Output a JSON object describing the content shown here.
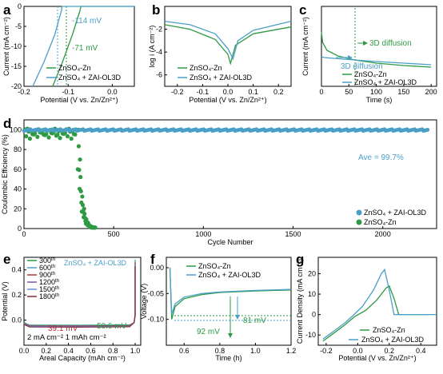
{
  "colors": {
    "green": "#2e9a44",
    "blue": "#4a9fc8",
    "red": "#b0323c",
    "purple": "#7a5aa0",
    "dark": "#222222"
  },
  "panels": {
    "a": {
      "letter": "a",
      "chart_data": {
        "type": "line",
        "xlabel": "Potential (V vs. Zn/Zn²⁺)",
        "ylabel": "Current (mA cm⁻²)",
        "xlim": [
          -0.2,
          0.05
        ],
        "ylim": [
          -20,
          0
        ],
        "xticks": [
          "-0.2",
          "-0.1",
          "0.0"
        ],
        "yticks": [
          "0",
          "-5",
          "-10",
          "-15",
          "-20"
        ],
        "annotations": [
          "-114 mV",
          "-71 mV"
        ],
        "series": [
          {
            "name": "ZnSO₄-Zn",
            "x": [
              -0.135,
              -0.113,
              -0.09,
              -0.073,
              -0.071,
              0.05
            ],
            "y": [
              -20,
              -14,
              -7,
              -1,
              0,
              0
            ]
          },
          {
            "name": "ZnSO₄ + ZAI-OL3D",
            "x": [
              -0.18,
              -0.155,
              -0.13,
              -0.115,
              -0.114,
              0.05
            ],
            "y": [
              -20,
              -14,
              -7,
              -1,
              0,
              0
            ]
          }
        ]
      }
    },
    "b": {
      "letter": "b",
      "chart_data": {
        "type": "line",
        "xlabel": "Potential (V vs. Zn/Zn²⁺)",
        "ylabel": "log i (A cm⁻²)",
        "xlim": [
          -0.25,
          0.25
        ],
        "ylim": [
          -7,
          0
        ],
        "xticks": [
          "-0.2",
          "-0.1",
          "0.0",
          "0.1",
          "0.2"
        ],
        "yticks": [
          "-2",
          "-4",
          "-6"
        ],
        "series": [
          {
            "name": "ZnSO₄-Zn",
            "x": [
              -0.25,
              -0.15,
              -0.05,
              0.0,
              0.01,
              0.03,
              0.1,
              0.25
            ],
            "y": [
              -1.6,
              -2.0,
              -2.9,
              -4.2,
              -5.0,
              -3.4,
              -2.4,
              -1.8
            ]
          },
          {
            "name": "ZnSO₄ + ZAI-OL3D",
            "x": [
              -0.25,
              -0.15,
              -0.05,
              0.0,
              0.02,
              0.04,
              0.1,
              0.25
            ],
            "y": [
              -1.3,
              -1.6,
              -2.4,
              -3.7,
              -4.6,
              -3.0,
              -2.1,
              -1.3
            ]
          }
        ]
      }
    },
    "c": {
      "letter": "c",
      "chart_data": {
        "type": "line",
        "xlabel": "Time (s)",
        "ylabel": "Current (mA cm⁻²)",
        "xlim": [
          0,
          210
        ],
        "ylim": [
          -10,
          0
        ],
        "xticks": [
          "0",
          "50",
          "100",
          "150",
          "200"
        ],
        "annotations": [
          "3D diffusion",
          "3D diffusion"
        ],
        "series": [
          {
            "name": "ZnSO₄-Zn",
            "x": [
              0,
              2,
              10,
              30,
              60,
              100,
              150,
              200
            ],
            "y": [
              -3.2,
              -4.5,
              -5.5,
              -6.2,
              -6.7,
              -7.1,
              -7.4,
              -7.6
            ]
          },
          {
            "name": "ZnSO₄ + ZAI-OL3D",
            "x": [
              0,
              5,
              40,
              100,
              150,
              200
            ],
            "y": [
              -6.3,
              -6.4,
              -6.6,
              -6.9,
              -7.1,
              -7.3
            ]
          }
        ]
      }
    },
    "d": {
      "letter": "d",
      "chart_data": {
        "type": "scatter",
        "xlabel": "Cycle Number",
        "ylabel": "Coulombic Efficiency (%)",
        "xlim": [
          0,
          2300
        ],
        "ylim": [
          0,
          110
        ],
        "xticks": [
          "0",
          "500",
          "1000",
          "1500",
          "2000"
        ],
        "yticks": [
          "0",
          "20",
          "40",
          "60",
          "80",
          "100"
        ],
        "annotations": [
          "Ave = 99.7%"
        ],
        "legend": "bottom-right",
        "series": [
          {
            "name": "ZnSO₄ + ZAI-OL3D",
            "x": [
              0,
              2250
            ],
            "y": [
              99.7,
              99.7
            ]
          },
          {
            "name": "ZnSO₄-Zn",
            "x": [
              10,
              250,
              300,
              320,
              340,
              360,
              380,
              400
            ],
            "y": [
              97,
              99,
              60,
              40,
              20,
              10,
              4,
              2
            ]
          }
        ]
      }
    },
    "e": {
      "letter": "e",
      "chart_data": {
        "type": "line",
        "xlabel": "Areal Capacity (mAh cm⁻²)",
        "ylabel": "Potential (V)",
        "xlim": [
          0,
          1.05
        ],
        "ylim": [
          -0.2,
          0.5
        ],
        "xticks": [
          "0.0",
          "0.2",
          "0.4",
          "0.6",
          "0.8",
          "1.0"
        ],
        "yticks": [
          "0.0",
          "0.2",
          "0.4"
        ],
        "title_inline": "ZnSO₄ + ZAI-OL3D",
        "conditions": "2 mA cm⁻² 1 mAh cm⁻²",
        "annotations": [
          "39.1 mV",
          "50.6 mV"
        ],
        "series": [
          {
            "name": "300",
            "sup": "th"
          },
          {
            "name": "600",
            "sup": "th"
          },
          {
            "name": "900",
            "sup": "th"
          },
          {
            "name": "1200",
            "sup": "th"
          },
          {
            "name": "1500",
            "sup": "th"
          },
          {
            "name": "1800",
            "sup": "th"
          }
        ]
      }
    },
    "f": {
      "letter": "f",
      "chart_data": {
        "type": "line",
        "xlabel": "Time (h)",
        "ylabel": "Voltage (V)",
        "xlim": [
          0.5,
          1.2
        ],
        "ylim": [
          -0.15,
          0.02
        ],
        "xticks": [
          "0.6",
          "0.8",
          "1.0",
          "1.2"
        ],
        "yticks": [
          "0.00",
          "-0.05",
          "-0.10"
        ],
        "annotations": [
          "92 mV",
          "81 mV"
        ],
        "series": [
          {
            "name": "ZnSO₄-Zn",
            "x": [
              0.52,
              0.53,
              0.55,
              0.6,
              0.7,
              0.8,
              1.0,
              1.2
            ],
            "y": [
              0.0,
              -0.1,
              -0.075,
              -0.06,
              -0.052,
              -0.048,
              -0.045,
              -0.043
            ]
          },
          {
            "name": "ZnSO₄ + ZAI-OL3D",
            "x": [
              0.52,
              0.53,
              0.55,
              0.6,
              0.7,
              0.8,
              1.0,
              1.2
            ],
            "y": [
              0.0,
              -0.09,
              -0.07,
              -0.057,
              -0.05,
              -0.047,
              -0.044,
              -0.042
            ]
          }
        ]
      }
    },
    "g": {
      "letter": "g",
      "chart_data": {
        "type": "line",
        "xlabel": "Potential (V vs. Zn/Zn²⁺)",
        "ylabel": "Current Density (mA cm⁻²)",
        "xlim": [
          -0.25,
          0.5
        ],
        "ylim": [
          -15,
          28
        ],
        "xticks": [
          "-0.2",
          "0.0",
          "0.2",
          "0.4"
        ],
        "yticks": [
          "20",
          "10",
          "0",
          "-10"
        ],
        "series": [
          {
            "name": "ZnSO₄-Zn",
            "x": [
              -0.22,
              -0.15,
              -0.08,
              -0.02,
              0.05,
              0.12,
              0.18,
              0.2,
              0.23,
              0.26,
              0.45
            ],
            "y": [
              -13,
              -9,
              -5,
              -1,
              2,
              7,
              13,
              14,
              8,
              0,
              0
            ]
          },
          {
            "name": "ZnSO₄ + ZAI-OL3D",
            "x": [
              -0.22,
              -0.15,
              -0.08,
              -0.03,
              0.03,
              0.1,
              0.15,
              0.17,
              0.2,
              0.23,
              0.5
            ],
            "y": [
              -12,
              -8,
              -4,
              -0.5,
              4,
              12,
              20,
              22,
              12,
              0,
              0
            ]
          }
        ]
      }
    }
  }
}
